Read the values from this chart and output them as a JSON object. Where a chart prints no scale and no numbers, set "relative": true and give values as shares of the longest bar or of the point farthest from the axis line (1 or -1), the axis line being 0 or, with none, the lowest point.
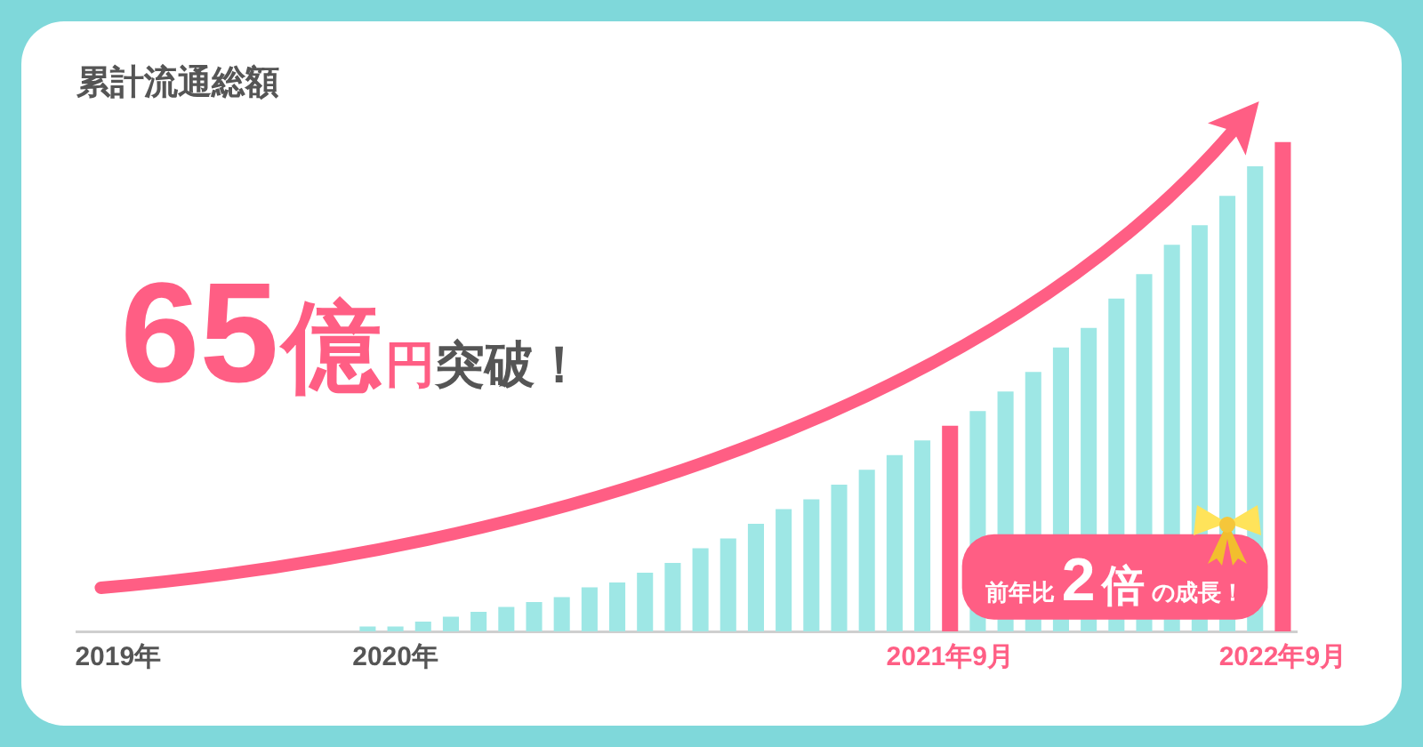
{
  "chart_data": {
    "type": "bar",
    "title": "累計流通総額",
    "categories": [
      null,
      "2019年",
      null,
      null,
      null,
      null,
      null,
      null,
      null,
      null,
      null,
      "2020年",
      null,
      null,
      null,
      null,
      null,
      null,
      null,
      null,
      null,
      null,
      null,
      null,
      null,
      null,
      null,
      null,
      null,
      null,
      null,
      "2021年9月",
      null,
      null,
      null,
      null,
      null,
      null,
      null,
      null,
      null,
      null,
      null,
      "2022年9月"
    ],
    "values": [
      null,
      null,
      null,
      null,
      null,
      null,
      null,
      null,
      null,
      null,
      0.01,
      0.01,
      0.02,
      0.03,
      0.04,
      0.05,
      0.06,
      0.07,
      0.09,
      0.1,
      0.12,
      0.14,
      0.17,
      0.19,
      0.22,
      0.25,
      0.27,
      0.3,
      0.33,
      0.36,
      0.39,
      0.42,
      0.45,
      0.49,
      0.53,
      0.58,
      0.62,
      0.68,
      0.73,
      0.79,
      0.83,
      0.89,
      0.95,
      1
    ],
    "color": "#9ee7e5",
    "colors": [
      null,
      null,
      null,
      null,
      null,
      null,
      null,
      null,
      null,
      null,
      "#9ee7e5",
      "#9ee7e5",
      "#9ee7e5",
      "#9ee7e5",
      "#9ee7e5",
      "#9ee7e5",
      "#9ee7e5",
      "#9ee7e5",
      "#9ee7e5",
      "#9ee7e5",
      "#9ee7e5",
      "#9ee7e5",
      "#9ee7e5",
      "#9ee7e5",
      "#9ee7e5",
      "#9ee7e5",
      "#9ee7e5",
      "#9ee7e5",
      "#9ee7e5",
      "#9ee7e5",
      "#9ee7e5",
      "#ff5e84",
      "#9ee7e5",
      "#9ee7e5",
      "#9ee7e5",
      "#9ee7e5",
      "#9ee7e5",
      "#9ee7e5",
      "#9ee7e5",
      "#9ee7e5",
      "#9ee7e5",
      "#9ee7e5",
      "#9ee7e5",
      "#ff5e84"
    ],
    "relative": true,
    "annotations": [
      "65億円突破！",
      "前年比2倍の成長！"
    ]
  }
}
